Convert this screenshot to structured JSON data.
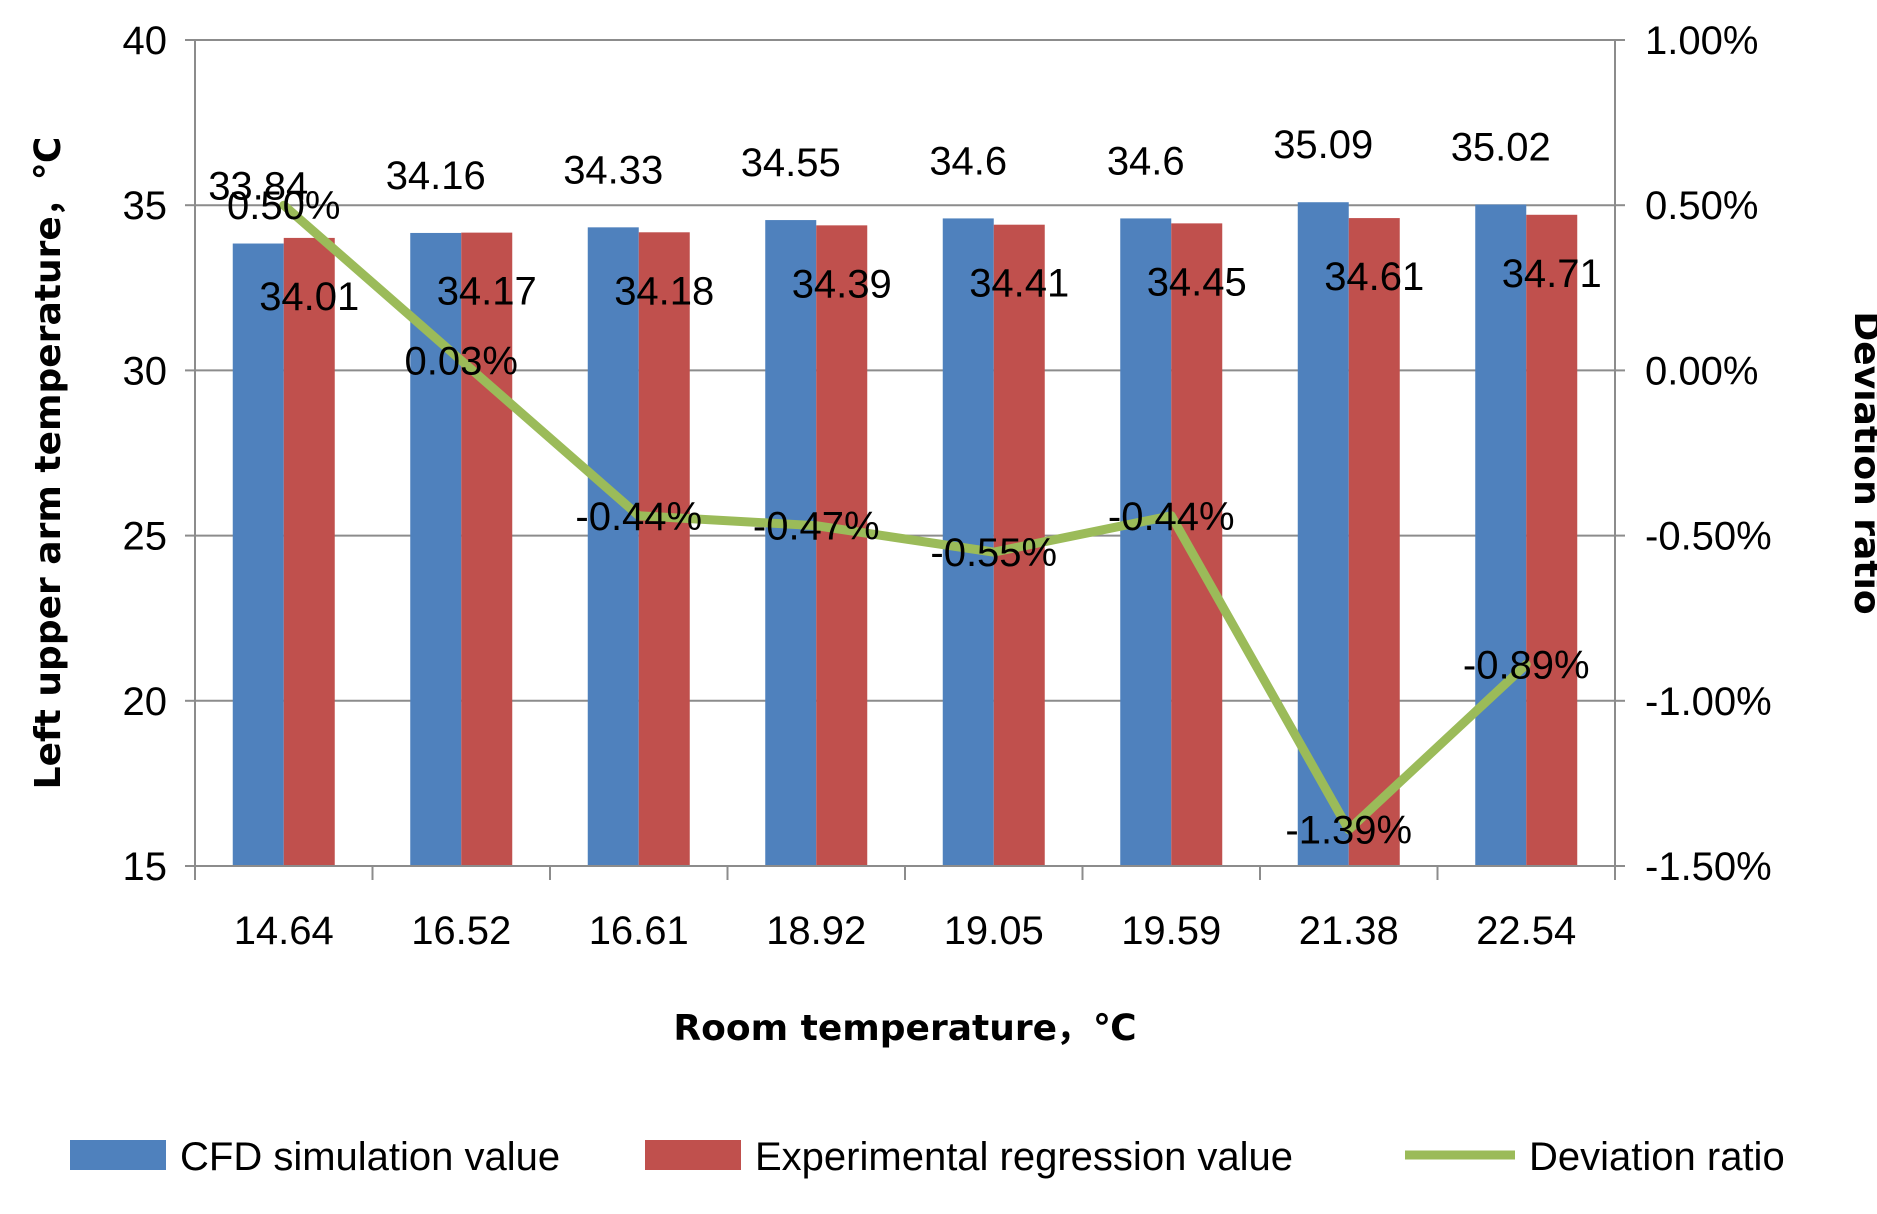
{
  "chart_data": {
    "type": "bar",
    "categories": [
      "14.64",
      "16.52",
      "16.61",
      "18.92",
      "19.05",
      "19.59",
      "21.38",
      "22.54"
    ],
    "series": [
      {
        "name": "CFD simulation value",
        "type": "bar",
        "axis": "left",
        "color": "#4F81BD",
        "values": [
          33.84,
          34.16,
          34.33,
          34.55,
          34.6,
          34.6,
          35.09,
          35.02
        ],
        "labels": [
          "33.84",
          "34.16",
          "34.33",
          "34.55",
          "34.6",
          "34.6",
          "35.09",
          "35.02"
        ]
      },
      {
        "name": "Experimental regression value",
        "type": "bar",
        "axis": "left",
        "color": "#C0504D",
        "values": [
          34.01,
          34.17,
          34.18,
          34.39,
          34.41,
          34.45,
          34.61,
          34.71
        ],
        "labels": [
          "34.01",
          "34.17",
          "34.18",
          "34.39",
          "34.41",
          "34.45",
          "34.61",
          "34.71"
        ]
      },
      {
        "name": "Deviation ratio",
        "type": "line",
        "axis": "right",
        "color": "#9BBB59",
        "values": [
          0.5,
          0.03,
          -0.44,
          -0.47,
          -0.55,
          -0.44,
          -1.39,
          -0.89
        ],
        "labels": [
          "0.50%",
          "0.03%",
          "-0.44%",
          "-0.47%",
          "-0.55%",
          "-0.44%",
          "-1.39%",
          "-0.89%"
        ]
      }
    ],
    "xlabel": "Room temperature，℃",
    "ylabel": "Left upper arm temperature，℃",
    "y2label": "Deviation ratio",
    "ylim": [
      15,
      40
    ],
    "yticks": [
      "15",
      "20",
      "25",
      "30",
      "35",
      "40"
    ],
    "y2lim": [
      -1.5,
      1.0
    ],
    "y2ticks": [
      "-1.50%",
      "-1.00%",
      "-0.50%",
      "0.00%",
      "0.50%",
      "1.00%"
    ],
    "grid": true,
    "legend_position": "bottom"
  }
}
